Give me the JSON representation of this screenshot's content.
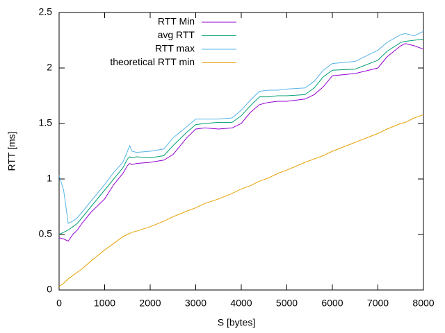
{
  "chart_data": {
    "type": "line",
    "xlabel": "S [bytes]",
    "ylabel": "RTT [ms]",
    "xlim": [
      0,
      8000
    ],
    "xticks": [
      0,
      1000,
      2000,
      3000,
      4000,
      5000,
      6000,
      7000,
      8000
    ],
    "ylim": [
      0,
      2.5
    ],
    "yticks": [
      0,
      0.5,
      1,
      1.5,
      2,
      2.5
    ],
    "legend": "top-left",
    "x": [
      0,
      100,
      200,
      300,
      400,
      500,
      700,
      1000,
      1200,
      1400,
      1500,
      1550,
      1600,
      1700,
      2000,
      2300,
      2500,
      2800,
      3000,
      3200,
      3500,
      3800,
      4000,
      4200,
      4400,
      4600,
      4800,
      5000,
      5400,
      5600,
      5800,
      6000,
      6500,
      7000,
      7200,
      7500,
      7600,
      7800,
      8000
    ],
    "series": [
      {
        "name": "RTT Min",
        "color": "#9400d3",
        "values": [
          0.47,
          0.46,
          0.44,
          0.5,
          0.54,
          0.6,
          0.7,
          0.82,
          0.95,
          1.05,
          1.12,
          1.14,
          1.13,
          1.14,
          1.15,
          1.17,
          1.22,
          1.37,
          1.45,
          1.46,
          1.45,
          1.46,
          1.5,
          1.6,
          1.67,
          1.69,
          1.7,
          1.7,
          1.72,
          1.76,
          1.83,
          1.93,
          1.95,
          2.0,
          2.1,
          2.2,
          2.22,
          2.2,
          2.17
        ]
      },
      {
        "name": "avg RTT",
        "color": "#009e73",
        "values": [
          0.5,
          0.52,
          0.54,
          0.57,
          0.6,
          0.65,
          0.75,
          0.9,
          1.0,
          1.1,
          1.18,
          1.2,
          1.19,
          1.2,
          1.19,
          1.21,
          1.3,
          1.42,
          1.49,
          1.5,
          1.51,
          1.51,
          1.57,
          1.66,
          1.74,
          1.74,
          1.75,
          1.75,
          1.76,
          1.82,
          1.92,
          1.98,
          1.99,
          2.07,
          2.15,
          2.23,
          2.24,
          2.25,
          2.26
        ]
      },
      {
        "name": "RTT max",
        "color": "#56b4e9",
        "values": [
          1.03,
          0.9,
          0.6,
          0.62,
          0.65,
          0.7,
          0.8,
          0.95,
          1.06,
          1.15,
          1.25,
          1.3,
          1.25,
          1.24,
          1.25,
          1.27,
          1.37,
          1.47,
          1.54,
          1.54,
          1.54,
          1.55,
          1.62,
          1.71,
          1.79,
          1.8,
          1.8,
          1.81,
          1.82,
          1.88,
          1.98,
          2.04,
          2.06,
          2.16,
          2.23,
          2.3,
          2.31,
          2.29,
          2.33
        ]
      },
      {
        "name": "theoretical RTT min",
        "color": "#e69f00",
        "values": [
          0.03,
          0.06,
          0.1,
          0.13,
          0.16,
          0.19,
          0.26,
          0.36,
          0.42,
          0.48,
          0.5,
          0.51,
          0.52,
          0.53,
          0.57,
          0.62,
          0.66,
          0.71,
          0.74,
          0.78,
          0.82,
          0.87,
          0.91,
          0.94,
          0.98,
          1.01,
          1.05,
          1.08,
          1.15,
          1.18,
          1.21,
          1.25,
          1.33,
          1.41,
          1.45,
          1.5,
          1.51,
          1.55,
          1.58
        ]
      }
    ]
  }
}
